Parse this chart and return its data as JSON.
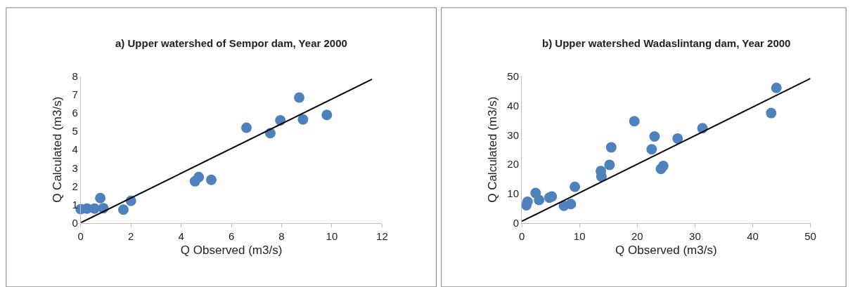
{
  "chart_data": [
    {
      "type": "scatter",
      "title": "a) Upper watershed of Sempor dam, Year 2000",
      "xlabel": "Q Observed (m3/s)",
      "ylabel": "Q Calculated (m3/s)",
      "xlim": [
        0,
        12
      ],
      "xticks": [
        0,
        2,
        4,
        6,
        8,
        10,
        12
      ],
      "ylim": [
        0,
        8
      ],
      "yticks": [
        0,
        1,
        2,
        3,
        4,
        5,
        6,
        7,
        8
      ],
      "marker": "circle",
      "series": [
        {
          "color": "#4f81bd",
          "x": [
            0,
            0.25,
            0.55,
            0.78,
            0.9,
            1.7,
            2.0,
            4.55,
            4.7,
            5.2,
            6.6,
            7.55,
            7.95,
            8.7,
            8.85,
            9.8
          ],
          "values": [
            0.75,
            0.78,
            0.78,
            1.35,
            0.8,
            0.72,
            1.2,
            2.27,
            2.5,
            2.35,
            5.2,
            4.9,
            5.6,
            6.85,
            5.65,
            5.9
          ]
        },
        {
          "type": "line",
          "color": "#000000",
          "marker": "none",
          "line_style": "solid",
          "x": [
            0,
            11.6
          ],
          "values": [
            0,
            7.85
          ]
        }
      ]
    },
    {
      "type": "scatter",
      "title": "b) Upper watershed Wadaslintang dam, Year 2000",
      "xlabel": "Q Observed (m3/s)",
      "ylabel": "Q Calculated (m3/s)",
      "xlim": [
        0,
        50
      ],
      "xticks": [
        0,
        10,
        20,
        30,
        40,
        50
      ],
      "ylim": [
        0,
        50
      ],
      "yticks": [
        0,
        10,
        20,
        30,
        40,
        50
      ],
      "marker": "circle",
      "series": [
        {
          "color": "#4f81bd",
          "x": [
            0.8,
            1,
            2.4,
            3,
            4.8,
            5.2,
            7.3,
            8.5,
            9.2,
            13.7,
            13.8,
            15.2,
            15.5,
            19.5,
            22.5,
            23,
            24.1,
            24.5,
            27,
            31.3,
            43.2,
            44.1
          ],
          "values": [
            6,
            7.2,
            10.2,
            7.8,
            8.6,
            9,
            5.8,
            6.4,
            12.3,
            17.7,
            15.8,
            19.8,
            25.8,
            34.7,
            25.1,
            29.5,
            18.4,
            19.4,
            28.8,
            32.3,
            37.5,
            46.1
          ]
        },
        {
          "type": "line",
          "color": "#000000",
          "marker": "none",
          "line_style": "solid",
          "x": [
            0,
            50
          ],
          "values": [
            0.5,
            49.3
          ]
        }
      ]
    }
  ]
}
